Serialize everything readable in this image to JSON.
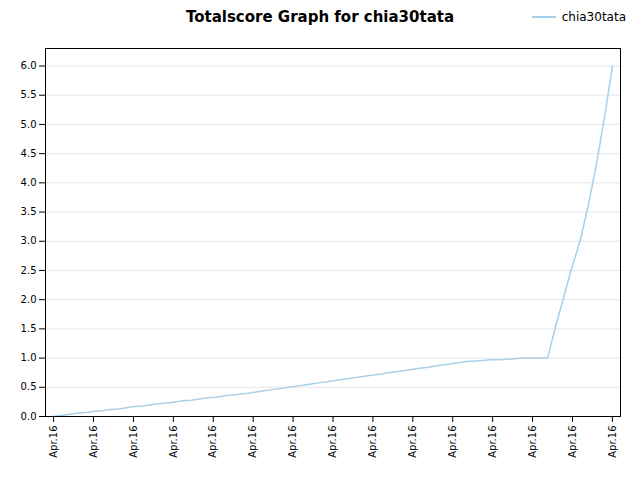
{
  "chart_data": {
    "type": "line",
    "title": "Totalscore Graph for chia30tata",
    "x": [
      0,
      1,
      2,
      3,
      4,
      5,
      6,
      7,
      8,
      9,
      10,
      11,
      12,
      13,
      14,
      15,
      16,
      17,
      18,
      19,
      20,
      21,
      22,
      23,
      24,
      25,
      26,
      27,
      28,
      29,
      30,
      31,
      32,
      33,
      34,
      35,
      36,
      37,
      38,
      39,
      40,
      41,
      42,
      43,
      44,
      45,
      46,
      47,
      48,
      49,
      50,
      51,
      52,
      53,
      54,
      55,
      56,
      57,
      58,
      59,
      60,
      61,
      62,
      63,
      64,
      65,
      66,
      67,
      68,
      69
    ],
    "series": [
      {
        "name": "chia30tata",
        "color": "#aacfe8",
        "values": [
          0.0,
          0.02,
          0.04,
          0.06,
          0.07,
          0.09,
          0.1,
          0.12,
          0.13,
          0.15,
          0.17,
          0.18,
          0.2,
          0.22,
          0.23,
          0.25,
          0.27,
          0.28,
          0.3,
          0.32,
          0.33,
          0.35,
          0.37,
          0.38,
          0.4,
          0.42,
          0.44,
          0.46,
          0.48,
          0.5,
          0.52,
          0.54,
          0.56,
          0.58,
          0.6,
          0.62,
          0.64,
          0.66,
          0.68,
          0.7,
          0.72,
          0.74,
          0.76,
          0.78,
          0.8,
          0.82,
          0.84,
          0.86,
          0.88,
          0.9,
          0.92,
          0.94,
          0.95,
          0.96,
          0.97,
          0.97,
          0.98,
          0.99,
          1.0,
          1.0,
          1.0,
          1.0,
          1.55,
          2.05,
          2.55,
          3.0,
          3.6,
          4.3,
          5.1,
          6.0
        ]
      }
    ],
    "xlim": [
      -1,
      70
    ],
    "xticks": [
      {
        "value": 0,
        "label": "Apr.16"
      },
      {
        "value": 4.928571428571429,
        "label": "Apr.16"
      },
      {
        "value": 9.857142857142858,
        "label": "Apr.16"
      },
      {
        "value": 14.785714285714286,
        "label": "Apr.16"
      },
      {
        "value": 19.714285714285715,
        "label": "Apr.16"
      },
      {
        "value": 24.642857142857142,
        "label": "Apr.16"
      },
      {
        "value": 29.571428571428573,
        "label": "Apr.16"
      },
      {
        "value": 34.5,
        "label": "Apr.16"
      },
      {
        "value": 39.42857142857143,
        "label": "Apr.16"
      },
      {
        "value": 44.357142857142854,
        "label": "Apr.16"
      },
      {
        "value": 49.285714285714285,
        "label": "Apr.16"
      },
      {
        "value": 54.214285714285715,
        "label": "Apr.16"
      },
      {
        "value": 59.142857142857146,
        "label": "Apr.16"
      },
      {
        "value": 64.07142857142857,
        "label": "Apr.16"
      },
      {
        "value": 69,
        "label": "Apr.16"
      }
    ],
    "ylim": [
      0,
      6.3
    ],
    "yticks": [
      {
        "value": 0,
        "label": "0.0"
      },
      0.5,
      {
        "value": 1,
        "label": "1.0"
      },
      1.5,
      {
        "value": 2,
        "label": "2.0"
      },
      2.5,
      {
        "value": 3,
        "label": "3.0"
      },
      3.5,
      {
        "value": 4,
        "label": "4.0"
      },
      4.5,
      {
        "value": 5,
        "label": "5.0"
      },
      5.5,
      {
        "value": 6,
        "label": "6.0"
      }
    ],
    "grid": true,
    "legend": "upper right"
  }
}
